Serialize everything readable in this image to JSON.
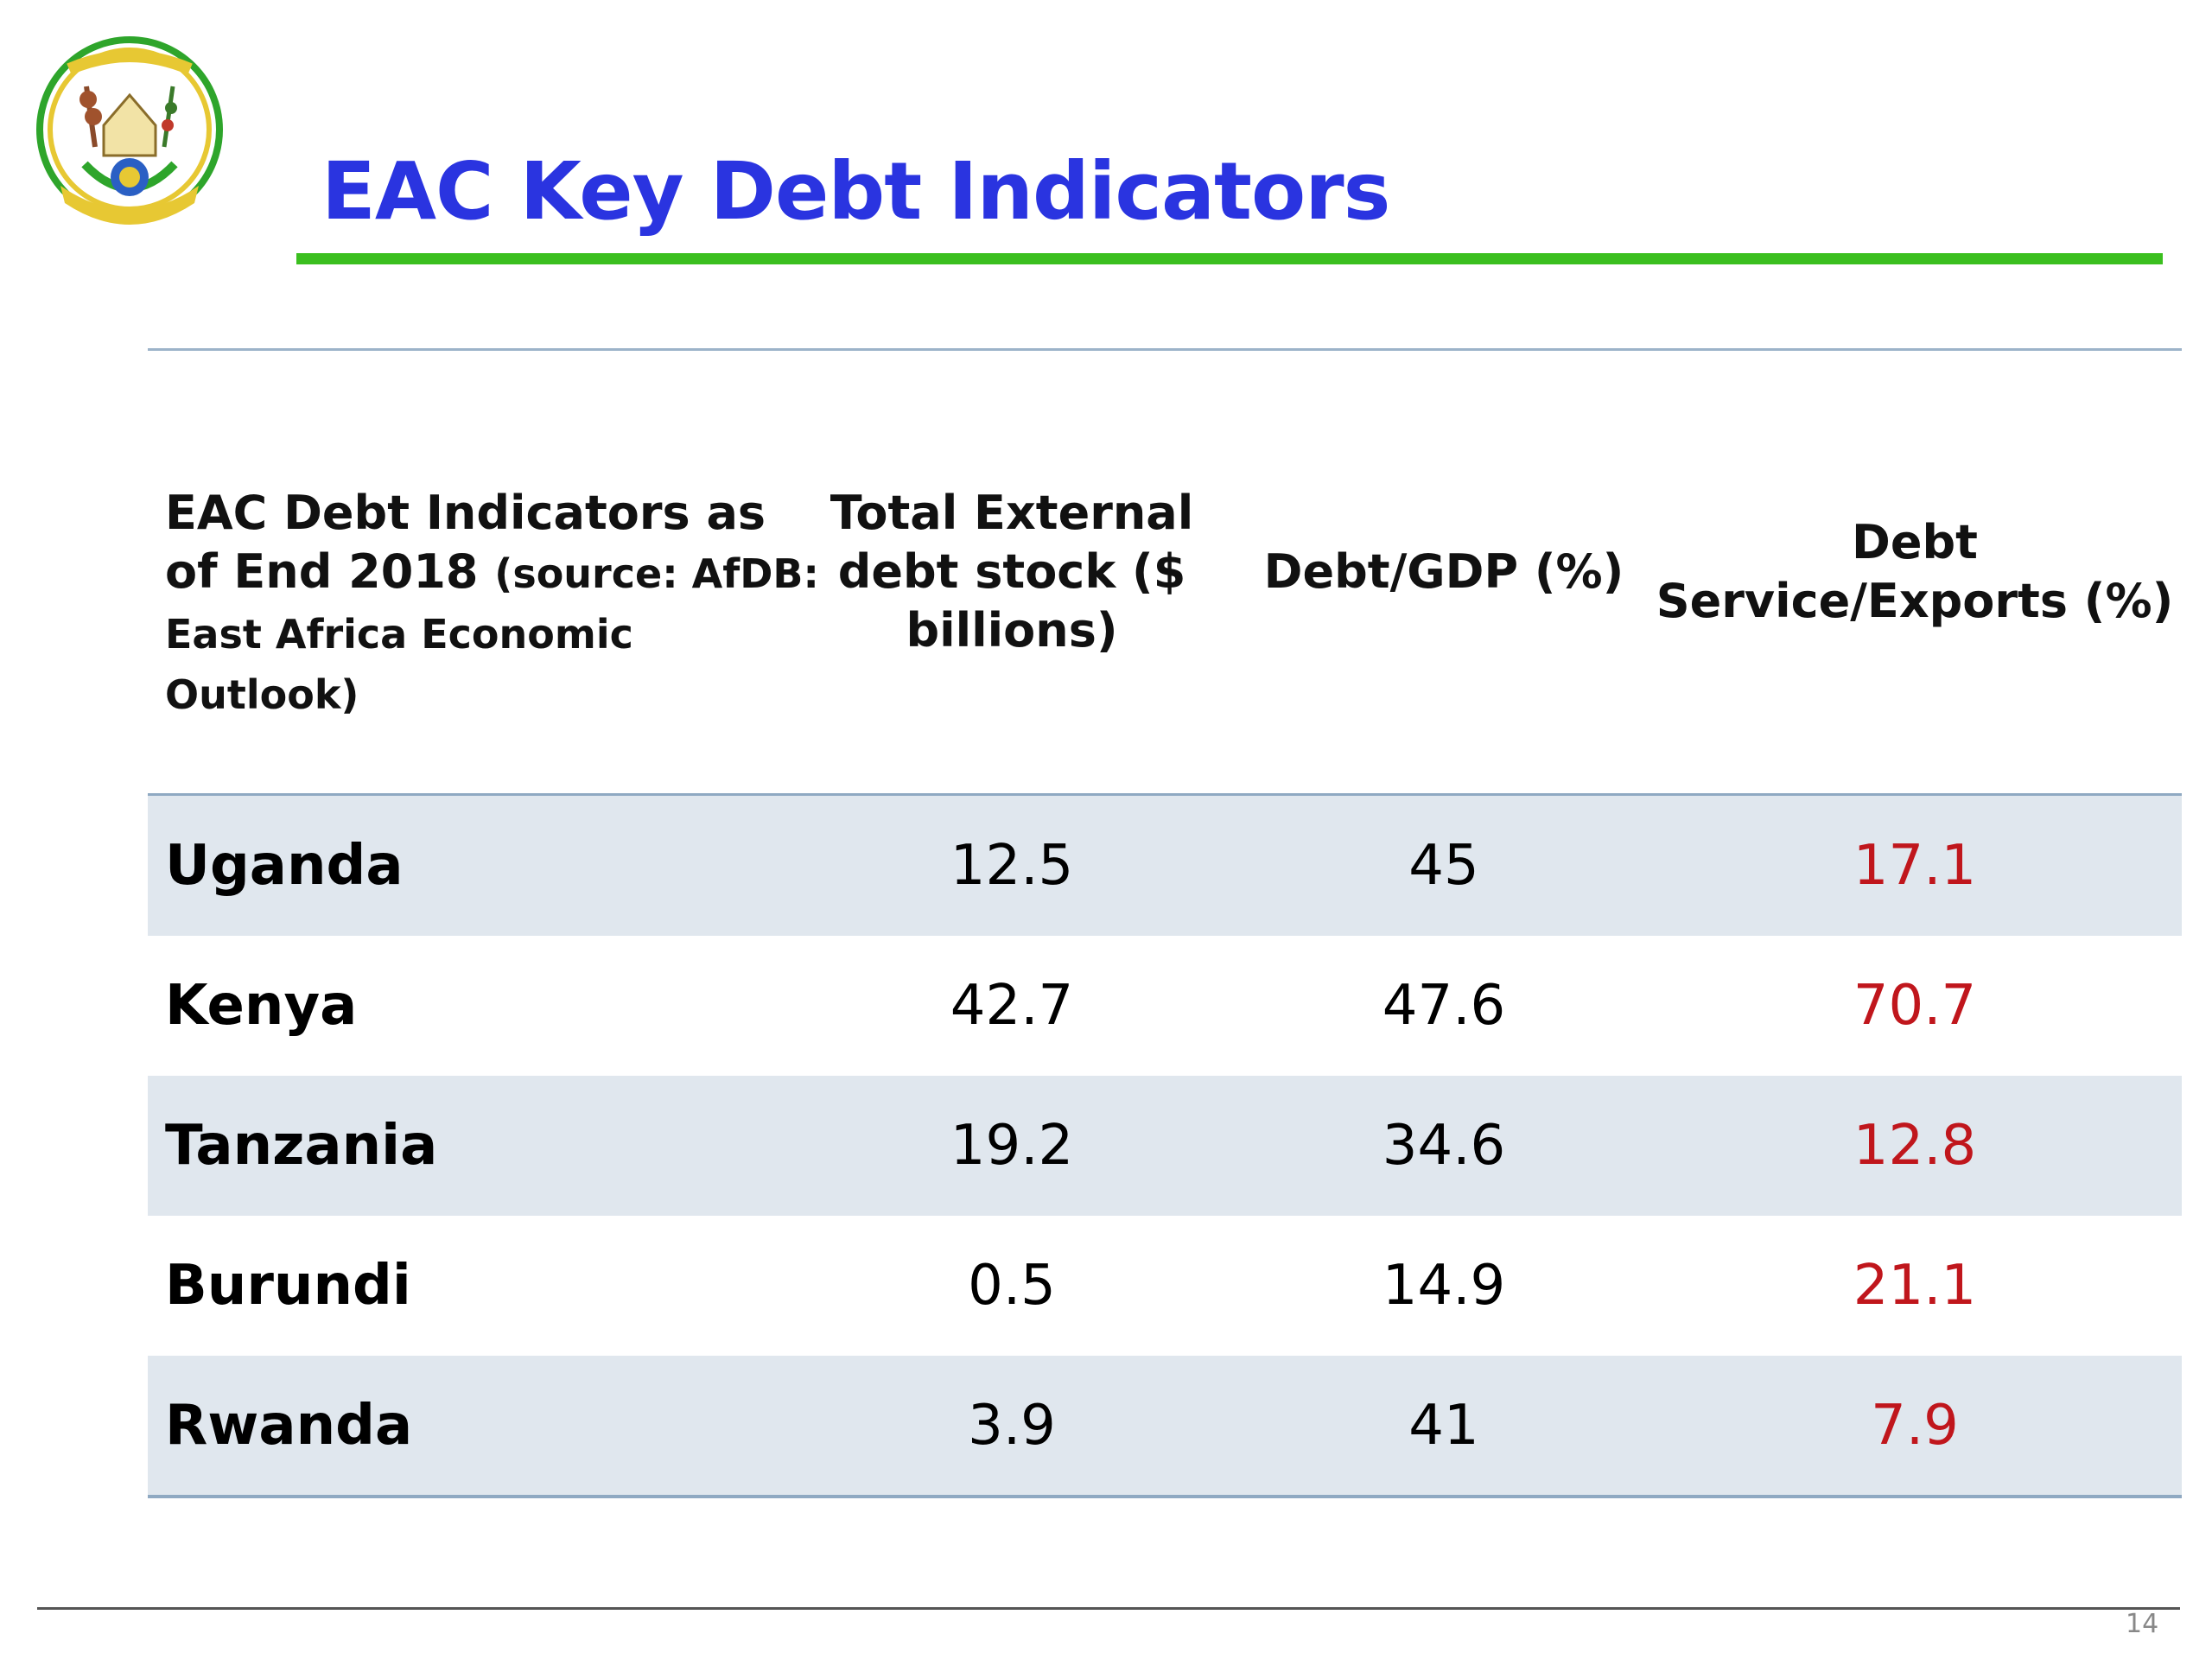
{
  "title": "EAC Key Debt Indicators",
  "colors": {
    "title": "#2a34e0",
    "title_rule": "#3bbf1f",
    "ratio_values": "#c0161c",
    "row_shade": "#e0e7ee"
  },
  "emblem": {
    "icon": "rwanda-coat-of-arms-icon"
  },
  "table": {
    "header": {
      "first_main": "EAC Debt Indicators as of End 2018",
      "first_source": "(source: AfDB: East Africa Economic Outlook)",
      "col2": "Total External debt stock ($ billions)",
      "col3": "Debt/GDP (%)",
      "col4": "Debt Service/Exports (%)"
    },
    "rows": [
      {
        "country": "Uganda",
        "debt_stock": "12.5",
        "debt_gdp": "45",
        "service_exports": "17.1"
      },
      {
        "country": "Kenya",
        "debt_stock": "42.7",
        "debt_gdp": "47.6",
        "service_exports": "70.7"
      },
      {
        "country": "Tanzania",
        "debt_stock": "19.2",
        "debt_gdp": "34.6",
        "service_exports": "12.8"
      },
      {
        "country": "Burundi",
        "debt_stock": "0.5",
        "debt_gdp": "14.9",
        "service_exports": "21.1"
      },
      {
        "country": "Rwanda",
        "debt_stock": "3.9",
        "debt_gdp": "41",
        "service_exports": "7.9"
      }
    ]
  },
  "footer": {
    "page_number": "14"
  }
}
